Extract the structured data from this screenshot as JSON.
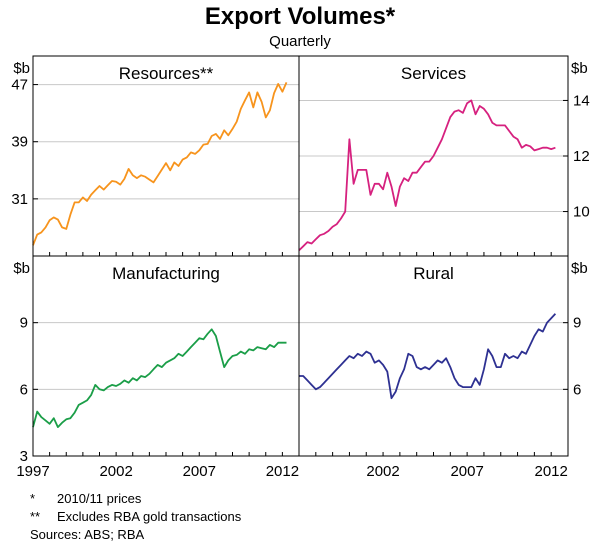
{
  "chart_data": {
    "type": "line",
    "title": "Export Volumes*",
    "subtitle": "Quarterly",
    "x_tick_labels": [
      "1997",
      "2002",
      "2007",
      "2012"
    ],
    "xlim": [
      1997,
      2013
    ],
    "panels": [
      {
        "name": "Resources**",
        "axis_side": "left",
        "unit": "$b",
        "ylim": [
          23,
          51
        ],
        "yticks": [
          31,
          39,
          47
        ],
        "color": "#f7941d",
        "series": [
          {
            "name": "Resources",
            "x": [
              1997.0,
              1997.25,
              1997.5,
              1997.75,
              1998.0,
              1998.25,
              1998.5,
              1998.75,
              1999.0,
              1999.25,
              1999.5,
              1999.75,
              2000.0,
              2000.25,
              2000.5,
              2000.75,
              2001.0,
              2001.25,
              2001.5,
              2001.75,
              2002.0,
              2002.25,
              2002.5,
              2002.75,
              2003.0,
              2003.25,
              2003.5,
              2003.75,
              2004.0,
              2004.25,
              2004.5,
              2004.75,
              2005.0,
              2005.25,
              2005.5,
              2005.75,
              2006.0,
              2006.25,
              2006.5,
              2006.75,
              2007.0,
              2007.25,
              2007.5,
              2007.75,
              2008.0,
              2008.25,
              2008.5,
              2008.75,
              2009.0,
              2009.25,
              2009.5,
              2009.75,
              2010.0,
              2010.25,
              2010.5,
              2010.75,
              2011.0,
              2011.25,
              2011.5,
              2011.75,
              2012.0,
              2012.25
            ],
            "values": [
              24.5,
              26,
              26.3,
              27,
              28,
              28.4,
              28.1,
              27,
              26.8,
              28.8,
              30.5,
              30.5,
              31.2,
              30.7,
              31.6,
              32.2,
              32.8,
              32.3,
              32.9,
              33.5,
              33.4,
              33,
              33.8,
              35.2,
              34.3,
              33.9,
              34.3,
              34.1,
              33.7,
              33.3,
              34.2,
              35.1,
              36,
              35,
              36.1,
              35.6,
              36.5,
              36.8,
              37.5,
              37.3,
              37.8,
              38.6,
              38.7,
              39.8,
              40.1,
              39.4,
              40.6,
              39.9,
              40.8,
              41.8,
              43.6,
              44.8,
              45.9,
              43.8,
              45.9,
              44.6,
              42.4,
              43.4,
              45.8,
              47.1,
              46,
              47.3
            ]
          }
        ]
      },
      {
        "name": "Services",
        "axis_side": "right",
        "unit": "$b",
        "ylim": [
          8.4,
          15.6
        ],
        "yticks": [
          10,
          12,
          14
        ],
        "color": "#d6217f",
        "series": [
          {
            "name": "Services",
            "x": [
              1997.0,
              1997.25,
              1997.5,
              1997.75,
              1998.0,
              1998.25,
              1998.5,
              1998.75,
              1999.0,
              1999.25,
              1999.5,
              1999.75,
              2000.0,
              2000.25,
              2000.5,
              2000.75,
              2001.0,
              2001.25,
              2001.5,
              2001.75,
              2002.0,
              2002.25,
              2002.5,
              2002.75,
              2003.0,
              2003.25,
              2003.5,
              2003.75,
              2004.0,
              2004.25,
              2004.5,
              2004.75,
              2005.0,
              2005.25,
              2005.5,
              2005.75,
              2006.0,
              2006.25,
              2006.5,
              2006.75,
              2007.0,
              2007.25,
              2007.5,
              2007.75,
              2008.0,
              2008.25,
              2008.5,
              2008.75,
              2009.0,
              2009.25,
              2009.5,
              2009.75,
              2010.0,
              2010.25,
              2010.5,
              2010.75,
              2011.0,
              2011.25,
              2011.5,
              2011.75,
              2012.0,
              2012.25
            ],
            "values": [
              8.6,
              8.75,
              8.9,
              8.85,
              9.0,
              9.15,
              9.2,
              9.3,
              9.45,
              9.55,
              9.75,
              10.0,
              12.6,
              11.0,
              11.5,
              11.5,
              11.5,
              10.6,
              11.0,
              11.0,
              10.8,
              11.4,
              10.9,
              10.2,
              10.9,
              11.2,
              11.1,
              11.4,
              11.4,
              11.6,
              11.8,
              11.8,
              12.0,
              12.3,
              12.6,
              13.0,
              13.4,
              13.6,
              13.65,
              13.55,
              13.9,
              14.0,
              13.5,
              13.8,
              13.7,
              13.5,
              13.2,
              13.1,
              13.1,
              13.1,
              12.9,
              12.7,
              12.6,
              12.3,
              12.4,
              12.35,
              12.2,
              12.25,
              12.3,
              12.3,
              12.25,
              12.3
            ]
          }
        ]
      },
      {
        "name": "Manufacturing",
        "axis_side": "left",
        "unit": "$b",
        "ylim": [
          3,
          12
        ],
        "yticks": [
          3,
          6,
          9
        ],
        "color": "#1b9e48",
        "series": [
          {
            "name": "Manufacturing",
            "x": [
              1997.0,
              1997.25,
              1997.5,
              1997.75,
              1998.0,
              1998.25,
              1998.5,
              1998.75,
              1999.0,
              1999.25,
              1999.5,
              1999.75,
              2000.0,
              2000.25,
              2000.5,
              2000.75,
              2001.0,
              2001.25,
              2001.5,
              2001.75,
              2002.0,
              2002.25,
              2002.5,
              2002.75,
              2003.0,
              2003.25,
              2003.5,
              2003.75,
              2004.0,
              2004.25,
              2004.5,
              2004.75,
              2005.0,
              2005.25,
              2005.5,
              2005.75,
              2006.0,
              2006.25,
              2006.5,
              2006.75,
              2007.0,
              2007.25,
              2007.5,
              2007.75,
              2008.0,
              2008.25,
              2008.5,
              2008.75,
              2009.0,
              2009.25,
              2009.5,
              2009.75,
              2010.0,
              2010.25,
              2010.5,
              2010.75,
              2011.0,
              2011.25,
              2011.5,
              2011.75,
              2012.0,
              2012.25
            ],
            "values": [
              4.3,
              5.0,
              4.75,
              4.6,
              4.45,
              4.7,
              4.3,
              4.5,
              4.65,
              4.7,
              4.95,
              5.3,
              5.4,
              5.5,
              5.75,
              6.2,
              6.0,
              5.95,
              6.1,
              6.2,
              6.15,
              6.25,
              6.4,
              6.3,
              6.5,
              6.4,
              6.6,
              6.55,
              6.7,
              6.9,
              7.1,
              7.0,
              7.2,
              7.3,
              7.4,
              7.6,
              7.5,
              7.7,
              7.9,
              8.1,
              8.3,
              8.25,
              8.5,
              8.7,
              8.4,
              7.7,
              7.0,
              7.3,
              7.5,
              7.55,
              7.7,
              7.6,
              7.8,
              7.75,
              7.9,
              7.85,
              7.8,
              8.0,
              7.9,
              8.1,
              8.1,
              8.1
            ]
          }
        ]
      },
      {
        "name": "Rural",
        "axis_side": "right",
        "unit": "$b",
        "ylim": [
          3,
          12
        ],
        "yticks": [
          6,
          9
        ],
        "color": "#2e3192",
        "series": [
          {
            "name": "Rural",
            "x": [
              1997.0,
              1997.25,
              1997.5,
              1997.75,
              1998.0,
              1998.25,
              1998.5,
              1998.75,
              1999.0,
              1999.25,
              1999.5,
              1999.75,
              2000.0,
              2000.25,
              2000.5,
              2000.75,
              2001.0,
              2001.25,
              2001.5,
              2001.75,
              2002.0,
              2002.25,
              2002.5,
              2002.75,
              2003.0,
              2003.25,
              2003.5,
              2003.75,
              2004.0,
              2004.25,
              2004.5,
              2004.75,
              2005.0,
              2005.25,
              2005.5,
              2005.75,
              2006.0,
              2006.25,
              2006.5,
              2006.75,
              2007.0,
              2007.25,
              2007.5,
              2007.75,
              2008.0,
              2008.25,
              2008.5,
              2008.75,
              2009.0,
              2009.25,
              2009.5,
              2009.75,
              2010.0,
              2010.25,
              2010.5,
              2010.75,
              2011.0,
              2011.25,
              2011.5,
              2011.75,
              2012.0,
              2012.25
            ],
            "values": [
              6.6,
              6.6,
              6.4,
              6.2,
              6.0,
              6.1,
              6.3,
              6.5,
              6.7,
              6.9,
              7.1,
              7.3,
              7.5,
              7.4,
              7.6,
              7.5,
              7.7,
              7.6,
              7.2,
              7.3,
              7.1,
              6.8,
              5.6,
              5.9,
              6.5,
              6.9,
              7.6,
              7.5,
              7.0,
              6.9,
              7.0,
              6.9,
              7.1,
              7.3,
              7.2,
              7.4,
              7.0,
              6.5,
              6.2,
              6.1,
              6.1,
              6.1,
              6.5,
              6.2,
              6.9,
              7.8,
              7.5,
              7.0,
              7.0,
              7.6,
              7.4,
              7.5,
              7.4,
              7.7,
              7.6,
              8.0,
              8.4,
              8.7,
              8.6,
              9.0,
              9.2,
              9.4
            ]
          }
        ]
      }
    ],
    "footnotes": [
      {
        "marker": "*",
        "text": "2010/11 prices"
      },
      {
        "marker": "**",
        "text": "Excludes RBA gold transactions"
      }
    ],
    "sources": "Sources: ABS; RBA"
  }
}
